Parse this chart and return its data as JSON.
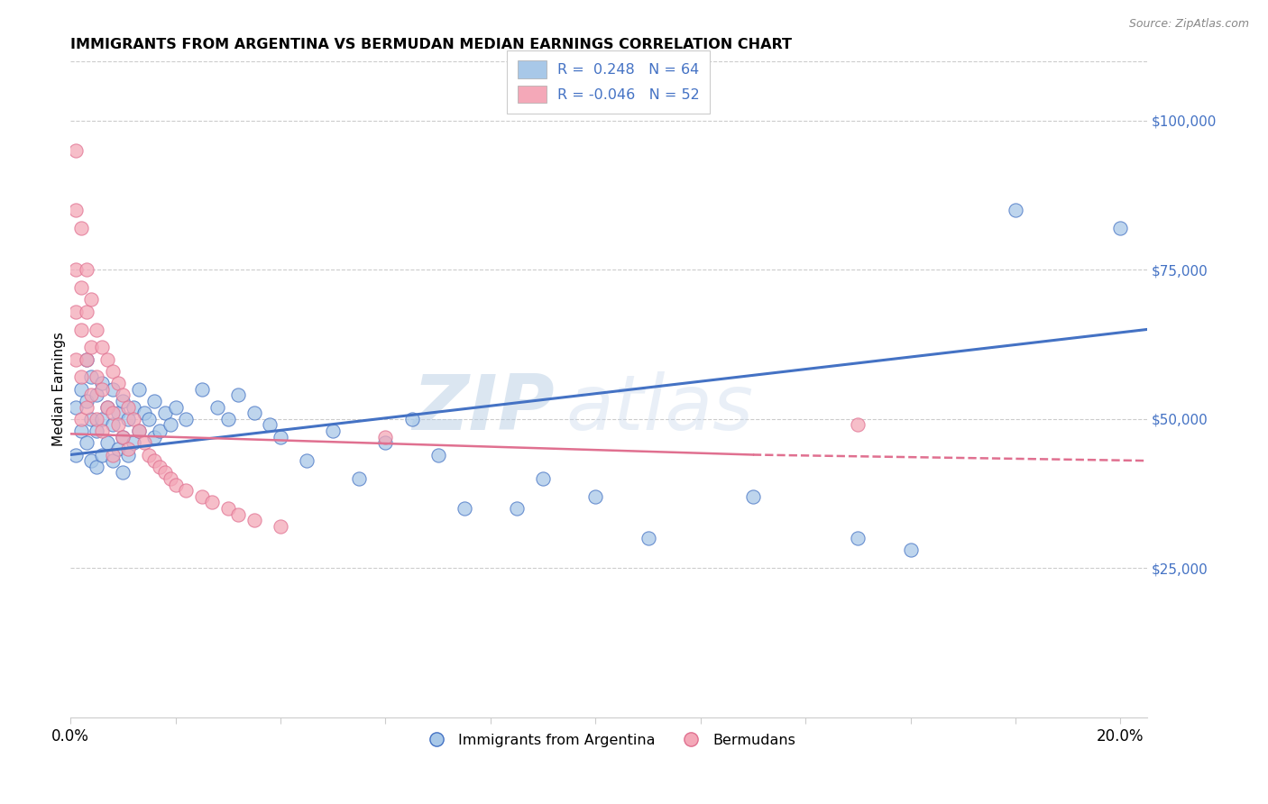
{
  "title": "IMMIGRANTS FROM ARGENTINA VS BERMUDAN MEDIAN EARNINGS CORRELATION CHART",
  "source": "Source: ZipAtlas.com",
  "ylabel": "Median Earnings",
  "right_yticks": [
    "$25,000",
    "$50,000",
    "$75,000",
    "$100,000"
  ],
  "right_ytick_vals": [
    25000,
    50000,
    75000,
    100000
  ],
  "watermark": "ZIPatlas",
  "legend1_label": "R =  0.248   N = 64",
  "legend2_label": "R = -0.046   N = 52",
  "legend_bottom1": "Immigrants from Argentina",
  "legend_bottom2": "Bermudans",
  "blue_color": "#a8c8e8",
  "pink_color": "#f4a8b8",
  "line_blue": "#4472c4",
  "line_pink": "#e07090",
  "xlim": [
    0.0,
    0.205
  ],
  "ylim": [
    0,
    110000
  ],
  "argentina_x": [
    0.001,
    0.001,
    0.002,
    0.002,
    0.003,
    0.003,
    0.003,
    0.004,
    0.004,
    0.004,
    0.005,
    0.005,
    0.005,
    0.006,
    0.006,
    0.006,
    0.007,
    0.007,
    0.008,
    0.008,
    0.008,
    0.009,
    0.009,
    0.01,
    0.01,
    0.01,
    0.011,
    0.011,
    0.012,
    0.012,
    0.013,
    0.013,
    0.014,
    0.015,
    0.016,
    0.016,
    0.017,
    0.018,
    0.019,
    0.02,
    0.022,
    0.025,
    0.028,
    0.03,
    0.032,
    0.035,
    0.038,
    0.04,
    0.045,
    0.05,
    0.055,
    0.06,
    0.065,
    0.07,
    0.075,
    0.085,
    0.09,
    0.1,
    0.11,
    0.13,
    0.15,
    0.16,
    0.18,
    0.2
  ],
  "argentina_y": [
    52000,
    44000,
    55000,
    48000,
    60000,
    53000,
    46000,
    57000,
    50000,
    43000,
    54000,
    48000,
    42000,
    56000,
    50000,
    44000,
    52000,
    46000,
    55000,
    49000,
    43000,
    51000,
    45000,
    53000,
    47000,
    41000,
    50000,
    44000,
    52000,
    46000,
    55000,
    48000,
    51000,
    50000,
    53000,
    47000,
    48000,
    51000,
    49000,
    52000,
    50000,
    55000,
    52000,
    50000,
    54000,
    51000,
    49000,
    47000,
    43000,
    48000,
    40000,
    46000,
    50000,
    44000,
    35000,
    35000,
    40000,
    37000,
    30000,
    37000,
    30000,
    28000,
    85000,
    82000
  ],
  "bermuda_x": [
    0.001,
    0.001,
    0.001,
    0.001,
    0.001,
    0.002,
    0.002,
    0.002,
    0.002,
    0.002,
    0.003,
    0.003,
    0.003,
    0.003,
    0.004,
    0.004,
    0.004,
    0.005,
    0.005,
    0.005,
    0.006,
    0.006,
    0.006,
    0.007,
    0.007,
    0.008,
    0.008,
    0.008,
    0.009,
    0.009,
    0.01,
    0.01,
    0.011,
    0.011,
    0.012,
    0.013,
    0.014,
    0.015,
    0.016,
    0.017,
    0.018,
    0.019,
    0.02,
    0.022,
    0.025,
    0.027,
    0.03,
    0.032,
    0.035,
    0.04,
    0.06,
    0.15
  ],
  "bermuda_y": [
    95000,
    85000,
    75000,
    68000,
    60000,
    82000,
    72000,
    65000,
    57000,
    50000,
    75000,
    68000,
    60000,
    52000,
    70000,
    62000,
    54000,
    65000,
    57000,
    50000,
    62000,
    55000,
    48000,
    60000,
    52000,
    58000,
    51000,
    44000,
    56000,
    49000,
    54000,
    47000,
    52000,
    45000,
    50000,
    48000,
    46000,
    44000,
    43000,
    42000,
    41000,
    40000,
    39000,
    38000,
    37000,
    36000,
    35000,
    34000,
    33000,
    32000,
    47000,
    49000
  ]
}
